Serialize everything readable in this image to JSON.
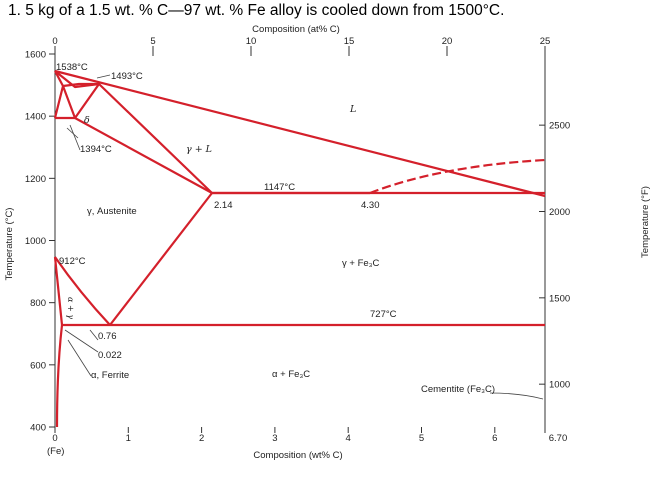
{
  "question": "1.   5 kg of a 1.5 wt. % C—97 wt. % Fe alloy is cooled down from 1500°C.",
  "axes": {
    "top_title": "Composition (at% C)",
    "top_ticks": [
      "0",
      "5",
      "10",
      "15",
      "20",
      "25"
    ],
    "bottom_title": "Composition (wt% C)",
    "bottom_ticks": [
      "0",
      "1",
      "2",
      "3",
      "4",
      "5",
      "6",
      "6.70"
    ],
    "bottom_left_note": "(Fe)",
    "left_title": "Temperature (°C)",
    "left_ticks": [
      "1600",
      "1400",
      "1200",
      "1000",
      "800",
      "600",
      "400"
    ],
    "right_title": "Temperature (°F)",
    "right_ticks": [
      "2500",
      "2000",
      "1500",
      "1000"
    ]
  },
  "labels": {
    "t1538": "1538°C",
    "t1493": "1493°C",
    "delta": "δ",
    "t1394": "1394°C",
    "gamma_liquid": "γ + L",
    "liquid": "L",
    "t1147": "1147°C",
    "c214": "2.14",
    "c430": "4.30",
    "austenite": "γ, Austenite",
    "t912": "912°C",
    "gamma_fe3c": "γ + Fe₃C",
    "alpha_gamma": "α + γ",
    "t727": "727°C",
    "c076": "0.76",
    "c0022": "0.022",
    "ferrite": "α, Ferrite",
    "alpha_fe3c": "α + Fe₃C",
    "cementite": "Cementite (Fe₃C)"
  },
  "colors": {
    "phase_line": "#d4202b",
    "axis": "#333333"
  }
}
